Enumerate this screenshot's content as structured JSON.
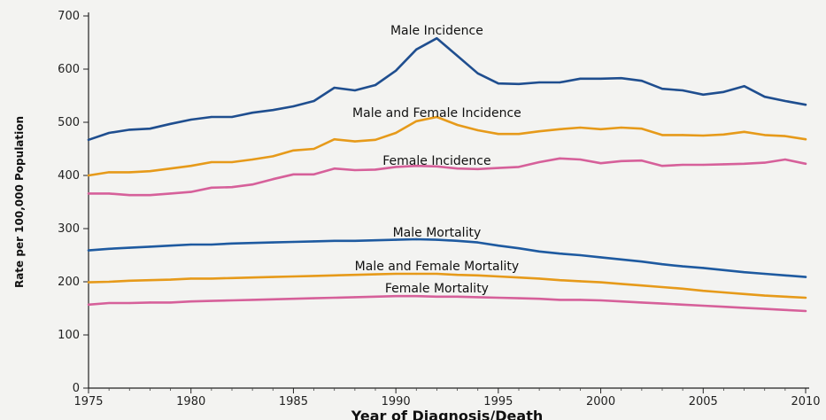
{
  "chart_data": {
    "type": "line",
    "xlabel": "Year of Diagnosis/Death",
    "ylabel": "Rate per 100,000 Population",
    "xlim": [
      1975,
      2010
    ],
    "ylim": [
      0,
      700
    ],
    "x_ticks": [
      1975,
      1980,
      1985,
      1990,
      1995,
      2000,
      2005,
      2010
    ],
    "y_ticks": [
      0,
      100,
      200,
      300,
      400,
      500,
      600,
      700
    ],
    "grid": false,
    "legend": "none (series labeled directly on chart)",
    "x": [
      1975,
      1976,
      1977,
      1978,
      1979,
      1980,
      1981,
      1982,
      1983,
      1984,
      1985,
      1986,
      1987,
      1988,
      1989,
      1990,
      1991,
      1992,
      1993,
      1994,
      1995,
      1996,
      1997,
      1998,
      1999,
      2000,
      2001,
      2002,
      2003,
      2004,
      2005,
      2006,
      2007,
      2008,
      2009,
      2010
    ],
    "series": [
      {
        "name": "Male Incidence",
        "color": "#1f4e8f",
        "values": [
          467,
          480,
          486,
          488,
          497,
          505,
          510,
          510,
          518,
          523,
          530,
          540,
          565,
          560,
          570,
          597,
          637,
          658,
          625,
          592,
          573,
          572,
          575,
          575,
          582,
          582,
          583,
          578,
          563,
          560,
          552,
          557,
          568,
          548,
          540,
          533
        ]
      },
      {
        "name": "Male and Female Incidence",
        "color": "#e69a1a",
        "values": [
          400,
          406,
          406,
          408,
          413,
          418,
          425,
          425,
          430,
          436,
          447,
          450,
          468,
          464,
          467,
          480,
          502,
          510,
          495,
          485,
          478,
          478,
          483,
          487,
          490,
          487,
          490,
          488,
          476,
          476,
          475,
          477,
          482,
          476,
          474,
          468
        ]
      },
      {
        "name": "Female Incidence",
        "color": "#d6609a",
        "values": [
          366,
          366,
          363,
          363,
          366,
          369,
          377,
          378,
          383,
          393,
          402,
          402,
          413,
          410,
          411,
          416,
          418,
          417,
          413,
          412,
          414,
          416,
          425,
          432,
          430,
          423,
          427,
          428,
          418,
          420,
          420,
          421,
          422,
          424,
          430,
          422
        ]
      },
      {
        "name": "Male Mortality",
        "color": "#1e5aa0",
        "values": [
          259,
          262,
          264,
          266,
          268,
          270,
          270,
          272,
          273,
          274,
          275,
          276,
          277,
          277,
          278,
          279,
          280,
          279,
          277,
          274,
          268,
          263,
          257,
          253,
          250,
          246,
          242,
          238,
          233,
          229,
          226,
          222,
          218,
          215,
          212,
          209
        ]
      },
      {
        "name": "Male and Female Mortality",
        "color": "#e69a1a",
        "values": [
          199,
          200,
          202,
          203,
          204,
          206,
          206,
          207,
          208,
          209,
          210,
          211,
          212,
          213,
          214,
          215,
          215,
          215,
          213,
          212,
          210,
          208,
          206,
          203,
          201,
          199,
          196,
          193,
          190,
          187,
          183,
          180,
          177,
          174,
          172,
          170
        ]
      },
      {
        "name": "Female Mortality",
        "color": "#d6609a",
        "values": [
          157,
          160,
          160,
          161,
          161,
          163,
          164,
          165,
          166,
          167,
          168,
          169,
          170,
          171,
          172,
          173,
          173,
          172,
          172,
          171,
          170,
          169,
          168,
          166,
          166,
          165,
          163,
          161,
          159,
          157,
          155,
          153,
          151,
          149,
          147,
          145
        ]
      }
    ],
    "label_anchors": [
      {
        "series": 0,
        "at_x": 1992,
        "at_y": 665
      },
      {
        "series": 1,
        "at_x": 1992,
        "at_y": 510
      },
      {
        "series": 2,
        "at_x": 1992,
        "at_y": 420
      },
      {
        "series": 3,
        "at_x": 1992,
        "at_y": 285
      },
      {
        "series": 4,
        "at_x": 1992,
        "at_y": 222
      },
      {
        "series": 5,
        "at_x": 1992,
        "at_y": 180
      }
    ]
  }
}
